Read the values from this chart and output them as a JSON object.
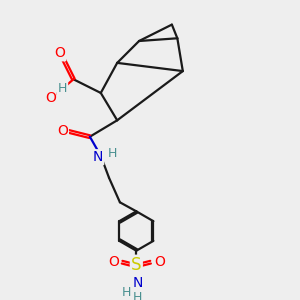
{
  "bg_color": "#eeeeee",
  "bond_color": "#1a1a1a",
  "bond_width": 1.6,
  "O_color": "#ff0000",
  "N_color": "#0000cc",
  "S_color": "#cccc00",
  "H_color": "#4a9090",
  "font_size": 10,
  "fig_size": [
    3.0,
    3.0
  ],
  "dpi": 100,
  "xlim": [
    0,
    10
  ],
  "ylim": [
    0,
    10
  ]
}
